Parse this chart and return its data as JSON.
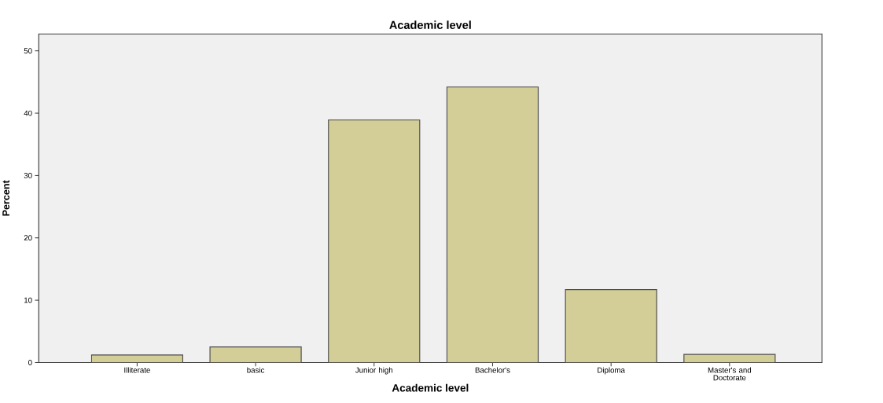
{
  "chart_data": {
    "type": "bar",
    "title": "Academic level",
    "xlabel": "Academic level",
    "ylabel": "Percent",
    "categories": [
      "Illiterate",
      "basic",
      "Junior high",
      "Bachelor's",
      "Diploma",
      "Master's and Doctorate"
    ],
    "values": [
      1.2,
      2.5,
      38.9,
      44.2,
      11.7,
      1.3
    ],
    "color": "#d3ce97",
    "ylim": [
      0,
      52.7
    ],
    "yticks": [
      0,
      10,
      20,
      30,
      40,
      50
    ],
    "grid": false
  }
}
